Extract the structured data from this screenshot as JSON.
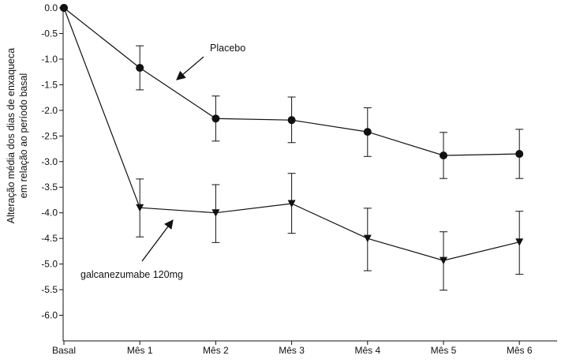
{
  "chart_data": {
    "type": "line",
    "title": "",
    "ylabel_lines": [
      "Alteração média dos dias de enxaqueca",
      "em relação ao período basal"
    ],
    "xlabel": "",
    "categories": [
      "Basal",
      "Mês 1",
      "Mês 2",
      "Mês 3",
      "Mês 4",
      "Mês 5",
      "Mês 6"
    ],
    "ylim": [
      -6.5,
      0.0
    ],
    "yticks": [
      0.0,
      -0.5,
      -1.0,
      -1.5,
      -2.0,
      -2.5,
      -3.0,
      -3.5,
      -4.0,
      -4.5,
      -5.0,
      -5.5,
      -6.0
    ],
    "ytick_labels": [
      "0.0",
      "-0.5",
      "-1.0",
      "-1.5",
      "-2.0",
      "-2.5",
      "-3.0",
      "-3.5",
      "-4.0",
      "-4.5",
      "-5.0",
      "-5.5",
      "-6.0"
    ],
    "grid": false,
    "legend": "none",
    "series": [
      {
        "name": "Placebo",
        "marker": "circle",
        "color": "#111111",
        "values": [
          0.0,
          -1.17,
          -2.16,
          -2.19,
          -2.42,
          -2.88,
          -2.85
        ],
        "error_low": [
          0.0,
          -1.6,
          -2.6,
          -2.63,
          -2.9,
          -3.33,
          -3.33
        ],
        "error_high": [
          0.0,
          -0.74,
          -1.72,
          -1.74,
          -1.95,
          -2.43,
          -2.37
        ]
      },
      {
        "name": "galcanezumabe 120mg",
        "marker": "triangle-down",
        "color": "#111111",
        "values": [
          0.0,
          -3.9,
          -4.0,
          -3.82,
          -4.5,
          -4.93,
          -4.57
        ],
        "error_low": [
          0.0,
          -4.47,
          -4.58,
          -4.4,
          -5.13,
          -5.51,
          -5.2
        ],
        "error_high": [
          0.0,
          -3.34,
          -3.45,
          -3.23,
          -3.91,
          -4.37,
          -3.97
        ]
      }
    ],
    "annotations": [
      {
        "text": "Placebo",
        "series": 0,
        "arrow_to_index": 1
      },
      {
        "text": "galcanezumabe 120mg",
        "series": 1,
        "arrow_to_index": 1
      }
    ]
  }
}
